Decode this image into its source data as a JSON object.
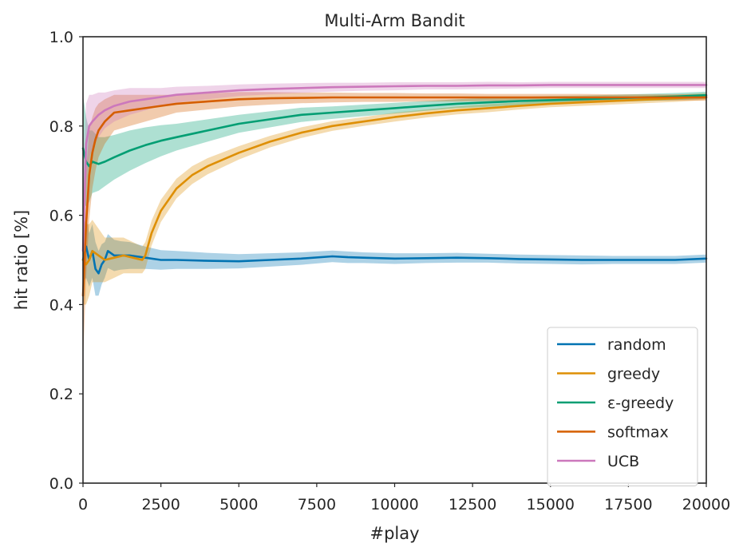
{
  "chart_data": {
    "type": "line",
    "title": "Multi-Arm Bandit",
    "xlabel": "#play",
    "ylabel": "hit ratio [%]",
    "xlim": [
      0,
      20000
    ],
    "ylim": [
      0.0,
      1.0
    ],
    "x_ticks": [
      "0",
      "2500",
      "5000",
      "7500",
      "10000",
      "12500",
      "15000",
      "17500",
      "20000"
    ],
    "y_ticks": [
      "0.0",
      "0.2",
      "0.4",
      "0.6",
      "0.8",
      "1.0"
    ],
    "grid": false,
    "legend_position": "bottom-right",
    "series": [
      {
        "name": "random",
        "color": "#0173b2",
        "x": [
          0,
          100,
          200,
          300,
          400,
          500,
          600,
          700,
          800,
          1000,
          1200,
          1500,
          2000,
          2500,
          3000,
          4000,
          5000,
          6000,
          7000,
          8000,
          8500,
          9000,
          10000,
          11000,
          12000,
          13000,
          14000,
          15000,
          16000,
          17000,
          18000,
          19000,
          20000
        ],
        "y": [
          0.5,
          0.53,
          0.5,
          0.52,
          0.48,
          0.47,
          0.49,
          0.5,
          0.52,
          0.51,
          0.51,
          0.51,
          0.505,
          0.5,
          0.5,
          0.498,
          0.497,
          0.5,
          0.503,
          0.508,
          0.506,
          0.505,
          0.503,
          0.504,
          0.505,
          0.504,
          0.502,
          0.501,
          0.5,
          0.5,
          0.5,
          0.5,
          0.503
        ],
        "band": [
          0.05,
          0.07,
          0.06,
          0.06,
          0.06,
          0.05,
          0.045,
          0.04,
          0.038,
          0.035,
          0.032,
          0.03,
          0.025,
          0.022,
          0.02,
          0.018,
          0.016,
          0.015,
          0.014,
          0.013,
          0.013,
          0.012,
          0.012,
          0.011,
          0.011,
          0.01,
          0.01,
          0.01,
          0.01,
          0.009,
          0.009,
          0.009,
          0.009
        ]
      },
      {
        "name": "greedy",
        "color": "#de8f05",
        "x": [
          0,
          100,
          200,
          300,
          500,
          700,
          1000,
          1300,
          1600,
          1900,
          2000,
          2200,
          2500,
          3000,
          3500,
          4000,
          5000,
          6000,
          7000,
          8000,
          9000,
          10000,
          11000,
          12000,
          13000,
          14000,
          15000,
          16000,
          17000,
          18000,
          19000,
          20000
        ],
        "y": [
          0.5,
          0.49,
          0.5,
          0.52,
          0.51,
          0.5,
          0.505,
          0.51,
          0.505,
          0.5,
          0.51,
          0.56,
          0.61,
          0.66,
          0.69,
          0.71,
          0.74,
          0.765,
          0.785,
          0.8,
          0.81,
          0.82,
          0.828,
          0.835,
          0.84,
          0.845,
          0.85,
          0.853,
          0.856,
          0.859,
          0.862,
          0.866
        ],
        "band": [
          0.1,
          0.09,
          0.08,
          0.07,
          0.06,
          0.05,
          0.045,
          0.04,
          0.035,
          0.03,
          0.03,
          0.028,
          0.025,
          0.022,
          0.02,
          0.018,
          0.015,
          0.013,
          0.012,
          0.011,
          0.01,
          0.01,
          0.009,
          0.009,
          0.009,
          0.008,
          0.008,
          0.008,
          0.008,
          0.008,
          0.008,
          0.008
        ]
      },
      {
        "name": "ε-greedy",
        "color": "#029e73",
        "x": [
          0,
          100,
          200,
          300,
          500,
          700,
          1000,
          1500,
          2000,
          2500,
          3000,
          4000,
          5000,
          6000,
          7000,
          8000,
          9000,
          10000,
          11000,
          12000,
          13000,
          14000,
          15000,
          16000,
          17000,
          18000,
          19000,
          20000
        ],
        "y": [
          0.75,
          0.72,
          0.71,
          0.72,
          0.715,
          0.72,
          0.73,
          0.745,
          0.757,
          0.767,
          0.775,
          0.79,
          0.805,
          0.815,
          0.825,
          0.83,
          0.835,
          0.84,
          0.845,
          0.85,
          0.853,
          0.856,
          0.858,
          0.86,
          0.862,
          0.864,
          0.866,
          0.869
        ],
        "band": [
          0.12,
          0.1,
          0.08,
          0.07,
          0.06,
          0.055,
          0.05,
          0.045,
          0.04,
          0.035,
          0.03,
          0.025,
          0.02,
          0.018,
          0.016,
          0.014,
          0.013,
          0.012,
          0.011,
          0.01,
          0.01,
          0.009,
          0.009,
          0.008,
          0.008,
          0.008,
          0.008,
          0.008
        ]
      },
      {
        "name": "softmax",
        "color": "#d55e00",
        "x": [
          0,
          100,
          200,
          300,
          400,
          500,
          700,
          1000,
          1500,
          2000,
          2500,
          3000,
          4000,
          5000,
          6000,
          7000,
          8000,
          9000,
          10000,
          11000,
          12000,
          13000,
          14000,
          15000,
          16000,
          17000,
          18000,
          19000,
          20000
        ],
        "y": [
          0.42,
          0.58,
          0.69,
          0.74,
          0.77,
          0.79,
          0.81,
          0.83,
          0.835,
          0.84,
          0.845,
          0.85,
          0.855,
          0.86,
          0.862,
          0.863,
          0.864,
          0.864,
          0.864,
          0.864,
          0.864,
          0.864,
          0.864,
          0.864,
          0.864,
          0.864,
          0.864,
          0.864,
          0.864
        ],
        "band": [
          0.15,
          0.12,
          0.1,
          0.08,
          0.07,
          0.06,
          0.05,
          0.04,
          0.035,
          0.03,
          0.025,
          0.02,
          0.018,
          0.016,
          0.014,
          0.012,
          0.011,
          0.01,
          0.01,
          0.009,
          0.009,
          0.008,
          0.008,
          0.008,
          0.008,
          0.007,
          0.007,
          0.007,
          0.007
        ]
      },
      {
        "name": "UCB",
        "color": "#cc78bc",
        "x": [
          0,
          100,
          200,
          300,
          500,
          700,
          1000,
          1500,
          2000,
          2500,
          3000,
          4000,
          5000,
          6000,
          7000,
          8000,
          9000,
          10000,
          11000,
          12000,
          13000,
          14000,
          15000,
          16000,
          17000,
          18000,
          19000,
          20000
        ],
        "y": [
          0.52,
          0.76,
          0.8,
          0.81,
          0.825,
          0.835,
          0.845,
          0.855,
          0.86,
          0.865,
          0.87,
          0.875,
          0.88,
          0.883,
          0.885,
          0.887,
          0.888,
          0.889,
          0.89,
          0.89,
          0.891,
          0.891,
          0.892,
          0.892,
          0.892,
          0.892,
          0.892,
          0.892
        ],
        "band": [
          0.12,
          0.09,
          0.07,
          0.06,
          0.05,
          0.04,
          0.035,
          0.03,
          0.025,
          0.02,
          0.018,
          0.015,
          0.013,
          0.012,
          0.011,
          0.01,
          0.009,
          0.009,
          0.008,
          0.008,
          0.008,
          0.007,
          0.007,
          0.007,
          0.007,
          0.007,
          0.007,
          0.007
        ]
      }
    ]
  }
}
